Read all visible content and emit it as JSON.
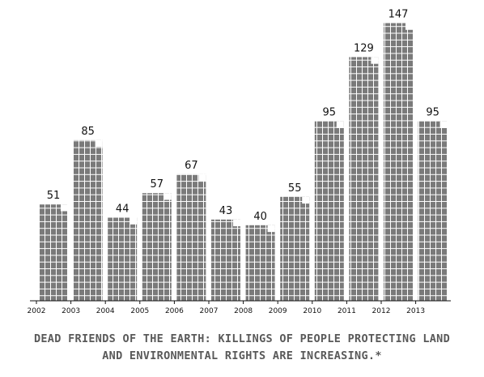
{
  "chart_data": {
    "type": "bar",
    "categories": [
      "2002",
      "2003",
      "2004",
      "2005",
      "2006",
      "2007",
      "2008",
      "2009",
      "2010",
      "2011",
      "2012",
      "2013"
    ],
    "values": [
      51,
      85,
      44,
      57,
      67,
      43,
      40,
      55,
      95,
      129,
      147,
      95
    ],
    "data_labels": [
      "51",
      "85",
      "44",
      "57",
      "67",
      "43",
      "40",
      "55",
      "95",
      "129",
      "147",
      "95"
    ],
    "x_tick_labels": [
      "2002",
      "2003",
      "2004",
      "2005",
      "2006",
      "2007",
      "2008",
      "2009",
      "2010",
      "2011",
      "2012",
      "2013"
    ],
    "title_lines": [
      "DEAD FRIENDS OF THE EARTH: KILLINGS OF PEOPLE PROTECTING LAND",
      "AND ENVIRONMENTAL RIGHTS ARE INCREASING.*"
    ],
    "xlabel": "",
    "ylabel": "",
    "ylim": [
      0,
      150
    ],
    "grid": false,
    "legend": "none",
    "bar_style": "unit-grid (one square per person)",
    "colors": {
      "bar": "#7a7a7a",
      "cell_line": "#ffffff",
      "text": "#111111",
      "title": "#595959"
    }
  }
}
